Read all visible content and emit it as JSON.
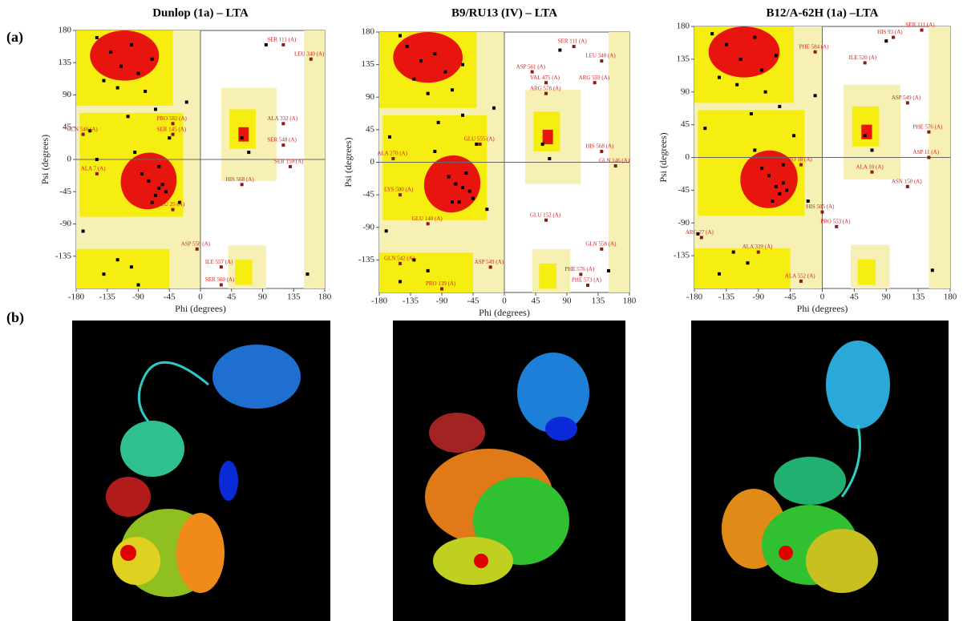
{
  "panels": [
    "(a)",
    "(b)"
  ],
  "chart_data": [
    {
      "type": "scatter",
      "title": "Dunlop (1a) – LTA",
      "xlabel": "Phi (degrees)",
      "ylabel": "Psi (degrees)",
      "xlim": [
        -180,
        180
      ],
      "ylim": [
        -180,
        180
      ],
      "xticks": [
        -180,
        -135,
        -90,
        -45,
        0,
        45,
        90,
        135,
        180
      ],
      "yticks": [
        -135,
        -90,
        -45,
        0,
        45,
        90,
        135,
        180
      ],
      "x": [
        -130,
        -115,
        -100,
        -90,
        -140,
        -120,
        -80,
        -70,
        -150,
        -105,
        -60,
        -75,
        -65,
        -55,
        -85,
        -70,
        -60,
        -50,
        -95,
        -65,
        -45,
        -120,
        -140,
        -100,
        -160,
        60,
        70,
        -30,
        -20,
        95,
        155,
        -170,
        -150,
        -90
      ],
      "values": [
        150,
        130,
        160,
        120,
        110,
        100,
        95,
        140,
        170,
        60,
        -40,
        -30,
        -50,
        -35,
        -20,
        -60,
        -10,
        -45,
        10,
        70,
        30,
        -140,
        -160,
        -150,
        40,
        30,
        10,
        -60,
        80,
        160,
        -160,
        -100,
        0,
        -175
      ],
      "annotations": [
        {
          "text": "SER 111 (A)",
          "x": 120,
          "y": 160
        },
        {
          "text": "LEU 340 (A)",
          "x": 160,
          "y": 140
        },
        {
          "text": "ALA 332 (A)",
          "x": 120,
          "y": 50
        },
        {
          "text": "SER 548 (A)",
          "x": 120,
          "y": 20
        },
        {
          "text": "SER 150 (A)",
          "x": 130,
          "y": -10
        },
        {
          "text": "GLN 540 (A)",
          "x": -170,
          "y": 35
        },
        {
          "text": "ALA 7 (A)",
          "x": -150,
          "y": -20
        },
        {
          "text": "GLU 25 (A)",
          "x": -40,
          "y": -70
        },
        {
          "text": "ASP 558 (A)",
          "x": -5,
          "y": -125
        },
        {
          "text": "ILE 557 (A)",
          "x": 30,
          "y": -150
        },
        {
          "text": "SER 560 (A)",
          "x": 30,
          "y": -175
        },
        {
          "text": "HIS 568 (A)",
          "x": 60,
          "y": -35
        },
        {
          "text": "PRO 582 (A)",
          "x": -40,
          "y": 50
        },
        {
          "text": "SER 145 (A)",
          "x": -40,
          "y": 35
        }
      ]
    },
    {
      "type": "scatter",
      "title": "B9/RU13 (IV) – LTA",
      "xlabel": "Phi (degrees)",
      "ylabel": "Psi (degrees)",
      "xlim": [
        -180,
        180
      ],
      "ylim": [
        -180,
        180
      ],
      "xticks": [
        -180,
        -135,
        -90,
        -45,
        0,
        45,
        90,
        135,
        180
      ],
      "yticks": [
        -135,
        -90,
        -45,
        0,
        45,
        90,
        135,
        180
      ],
      "x": [
        -140,
        -120,
        -100,
        -85,
        -130,
        -110,
        -75,
        -60,
        -150,
        -95,
        -60,
        -70,
        -65,
        -50,
        -80,
        -75,
        -55,
        -45,
        -100,
        -60,
        -40,
        -130,
        -150,
        -110,
        -165,
        55,
        65,
        -25,
        -15,
        80,
        150,
        -170
      ],
      "values": [
        160,
        140,
        150,
        125,
        115,
        95,
        100,
        135,
        175,
        55,
        -35,
        -30,
        -55,
        -40,
        -20,
        -55,
        -15,
        -50,
        15,
        65,
        25,
        -135,
        -165,
        -150,
        35,
        25,
        5,
        -65,
        75,
        155,
        -150,
        -95
      ],
      "annotations": [
        {
          "text": "SER 111 (A)",
          "x": 100,
          "y": 160
        },
        {
          "text": "LEU 340 (A)",
          "x": 140,
          "y": 140
        },
        {
          "text": "ASP 561 (A)",
          "x": 40,
          "y": 125
        },
        {
          "text": "VAL 475 (A)",
          "x": 60,
          "y": 110
        },
        {
          "text": "ARG 559 (A)",
          "x": 130,
          "y": 110
        },
        {
          "text": "ARG 578 (A)",
          "x": 60,
          "y": 95
        },
        {
          "text": "HIS 568 (A)",
          "x": 140,
          "y": 15
        },
        {
          "text": "GLN 146 (A)",
          "x": 160,
          "y": -5
        },
        {
          "text": "GLU 555 (A)",
          "x": -35,
          "y": 25
        },
        {
          "text": "ALA 270 (A)",
          "x": -160,
          "y": 5
        },
        {
          "text": "LYS 580 (A)",
          "x": -150,
          "y": -45
        },
        {
          "text": "GLU 140 (A)",
          "x": -110,
          "y": -85
        },
        {
          "text": "GLU 152 (A)",
          "x": 60,
          "y": -80
        },
        {
          "text": "GLN 542 (A)",
          "x": -150,
          "y": -140
        },
        {
          "text": "ASP 549 (A)",
          "x": -20,
          "y": -145
        },
        {
          "text": "PRO 139 (A)",
          "x": -90,
          "y": -175
        },
        {
          "text": "PHE 576 (A)",
          "x": 110,
          "y": -155
        },
        {
          "text": "PHE 573 (A)",
          "x": 120,
          "y": -170
        },
        {
          "text": "GLN 558 (A)",
          "x": 140,
          "y": -120
        }
      ]
    },
    {
      "type": "scatter",
      "title": "B12/A-62H (1a) –LTA",
      "xlabel": "Phi (degrees)",
      "ylabel": "Psi (degrees)",
      "xlim": [
        -180,
        180
      ],
      "ylim": [
        -180,
        180
      ],
      "xticks": [
        -180,
        -135,
        -90,
        -45,
        0,
        45,
        90,
        135,
        180
      ],
      "yticks": [
        -135,
        -90,
        -45,
        0,
        45,
        90,
        135,
        180
      ],
      "x": [
        -135,
        -115,
        -95,
        -85,
        -145,
        -120,
        -80,
        -65,
        -155,
        -100,
        -65,
        -75,
        -60,
        -55,
        -85,
        -70,
        -55,
        -50,
        -95,
        -60,
        -40,
        -125,
        -145,
        -105,
        -165,
        60,
        70,
        -20,
        -10,
        90,
        155,
        -175
      ],
      "values": [
        155,
        135,
        165,
        120,
        110,
        100,
        90,
        140,
        170,
        60,
        -40,
        -25,
        -50,
        -35,
        -15,
        -60,
        -10,
        -45,
        10,
        70,
        30,
        -130,
        -160,
        -145,
        40,
        30,
        10,
        -60,
        85,
        160,
        -155,
        -105
      ],
      "annotations": [
        {
          "text": "SER 111 (A)",
          "x": 140,
          "y": 175
        },
        {
          "text": "HIS 93 (A)",
          "x": 100,
          "y": 165
        },
        {
          "text": "PHE 584 (A)",
          "x": -10,
          "y": 145
        },
        {
          "text": "ILE 520 (A)",
          "x": 60,
          "y": 130
        },
        {
          "text": "ASP 549 (A)",
          "x": 120,
          "y": 75
        },
        {
          "text": "PHE 576 (A)",
          "x": 150,
          "y": 35
        },
        {
          "text": "ASP 11 (A)",
          "x": 150,
          "y": 0
        },
        {
          "text": "ALA 10 (A)",
          "x": 70,
          "y": -20
        },
        {
          "text": "ASN 150 (A)",
          "x": 120,
          "y": -40
        },
        {
          "text": "HIS 585 (A)",
          "x": 0,
          "y": -75
        },
        {
          "text": "PRO 553 (A)",
          "x": 20,
          "y": -95
        },
        {
          "text": "ARG 27 (A)",
          "x": -170,
          "y": -110
        },
        {
          "text": "ALA 339 (A)",
          "x": -90,
          "y": -130
        },
        {
          "text": "ALA 552 (A)",
          "x": -30,
          "y": -170
        },
        {
          "text": "PRO 18 (A)",
          "x": -30,
          "y": -10
        }
      ]
    }
  ]
}
